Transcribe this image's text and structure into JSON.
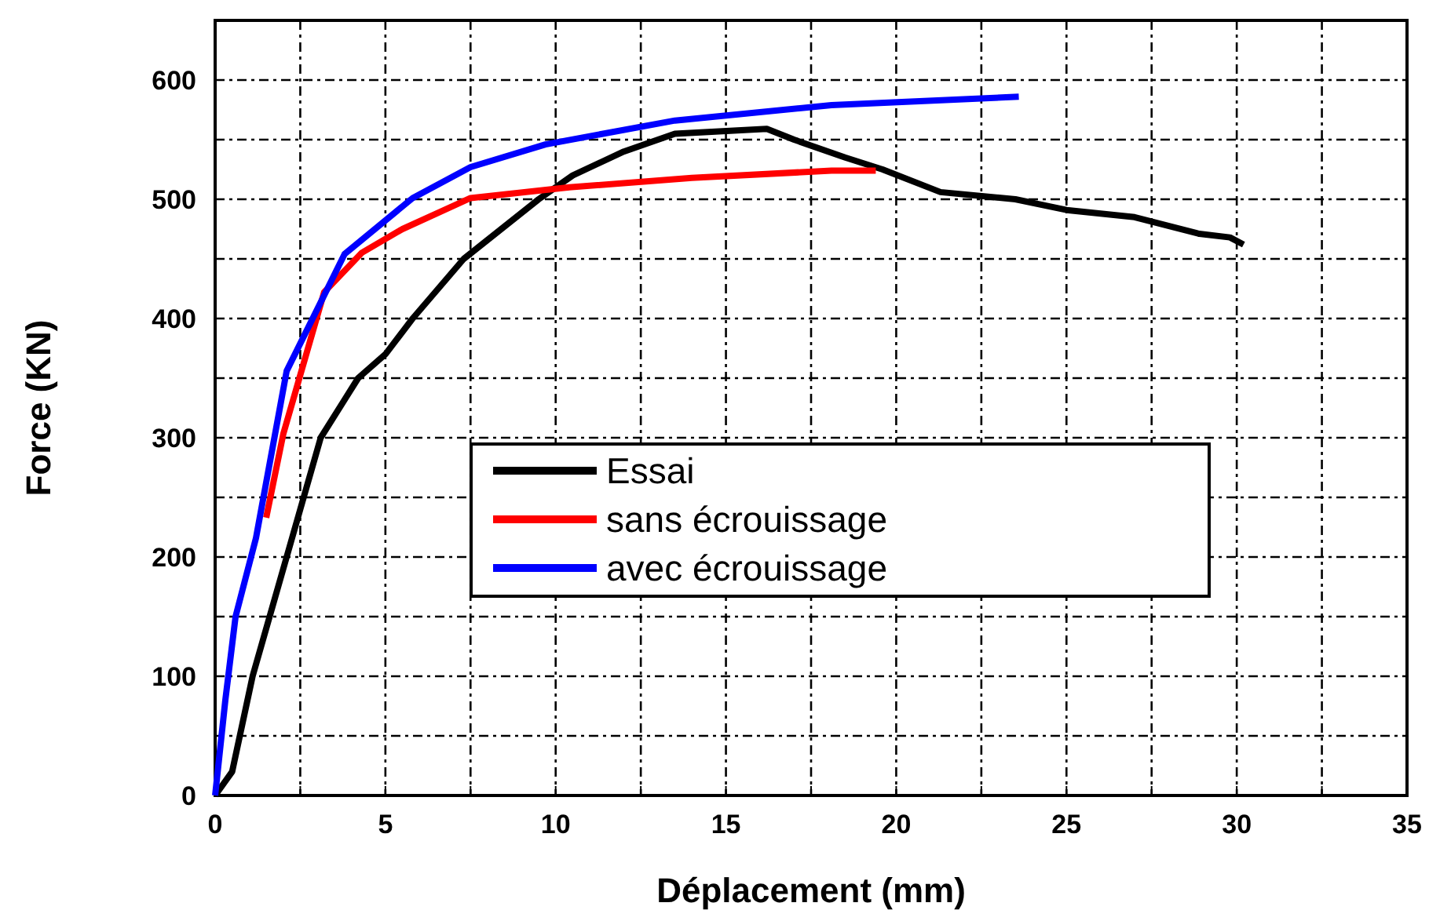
{
  "chart_data": {
    "type": "line",
    "xlabel": "Déplacement (mm)",
    "ylabel": "Force (KN)",
    "xlim": [
      0,
      35
    ],
    "ylim": [
      0,
      650
    ],
    "xticks": [
      0,
      {
        "value": 2.5,
        "label": null
      },
      5,
      {
        "value": 7.5,
        "label": null
      },
      10,
      {
        "value": 12.5,
        "label": null
      },
      15,
      {
        "value": 17.5,
        "label": null
      },
      20,
      {
        "value": 22.5,
        "label": null
      },
      25,
      {
        "value": 27.5,
        "label": null
      },
      30,
      {
        "value": 32.5,
        "label": null
      },
      35
    ],
    "yticks": [
      0,
      {
        "value": 50,
        "label": null
      },
      100,
      {
        "value": 150,
        "label": null
      },
      200,
      {
        "value": 250,
        "label": null
      },
      300,
      {
        "value": 350,
        "label": null
      },
      400,
      {
        "value": 450,
        "label": null
      },
      500,
      {
        "value": 550,
        "label": null
      },
      600
    ],
    "grid": true,
    "legend": "center",
    "marker": "none",
    "line_style": "solid",
    "series": [
      {
        "name": "Essai",
        "color": "#000000",
        "x": [
          0,
          0.5,
          1.1,
          2.1,
          3.1,
          4.2,
          5,
          5.8,
          7.3,
          9.5,
          10.5,
          12,
          13.5,
          16.2,
          17,
          18.5,
          19.6,
          21.3,
          23.5,
          25,
          27,
          28.9,
          29.8,
          30.2
        ],
        "values": [
          0,
          20,
          100,
          200,
          300,
          350,
          370,
          400,
          450,
          500,
          520,
          540,
          555,
          559,
          550,
          535,
          525,
          506,
          500,
          491,
          485,
          471,
          468,
          462
        ]
      },
      {
        "name": "sans écrouissage",
        "color": "#ff0000",
        "x": [
          1.5,
          2,
          3.2,
          4.3,
          5.5,
          7.5,
          10.4,
          14,
          18.1,
          19.4
        ],
        "values": [
          233,
          303,
          422,
          455,
          475,
          501,
          510,
          518,
          524,
          524
        ]
      },
      {
        "name": "avec écrouissage",
        "color": "#0000ff",
        "x": [
          0,
          0.3,
          0.6,
          1.2,
          2.1,
          3.8,
          5.8,
          7.5,
          9.7,
          13.5,
          18.1,
          23.6
        ],
        "values": [
          0,
          80,
          150,
          216,
          356,
          454,
          501,
          527,
          546,
          566,
          579,
          586
        ]
      }
    ]
  }
}
